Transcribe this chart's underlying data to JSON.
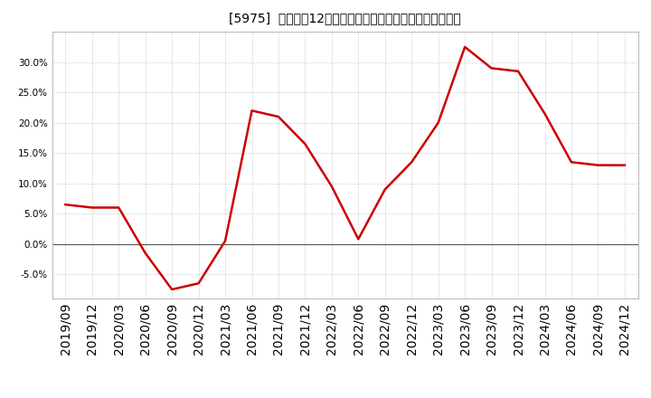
{
  "title": "[5975]  売上高の12か月移動合計の対前年同期増減率の推移",
  "line_color": "#cc0000",
  "background_color": "#ffffff",
  "plot_bg_color": "#ffffff",
  "grid_color": "#aaaaaa",
  "x_labels": [
    "2019/09",
    "2019/12",
    "2020/03",
    "2020/06",
    "2020/09",
    "2020/12",
    "2021/03",
    "2021/06",
    "2021/09",
    "2021/12",
    "2022/03",
    "2022/06",
    "2022/09",
    "2022/12",
    "2023/03",
    "2023/06",
    "2023/09",
    "2023/12",
    "2024/03",
    "2024/06",
    "2024/09",
    "2024/12"
  ],
  "y_values": [
    6.5,
    6.0,
    6.0,
    -1.5,
    -7.5,
    -6.5,
    0.5,
    22.0,
    21.0,
    16.5,
    9.5,
    0.8,
    9.0,
    13.5,
    20.0,
    32.5,
    29.0,
    28.5,
    21.5,
    13.5,
    13.0,
    13.0
  ],
  "ylim": [
    -9.0,
    35.0
  ],
  "yticks": [
    -5.0,
    0.0,
    5.0,
    10.0,
    15.0,
    20.0,
    25.0,
    30.0
  ],
  "zero_line_color": "#555555",
  "line_width": 1.8,
  "title_fontsize": 10,
  "tick_fontsize": 7.5
}
